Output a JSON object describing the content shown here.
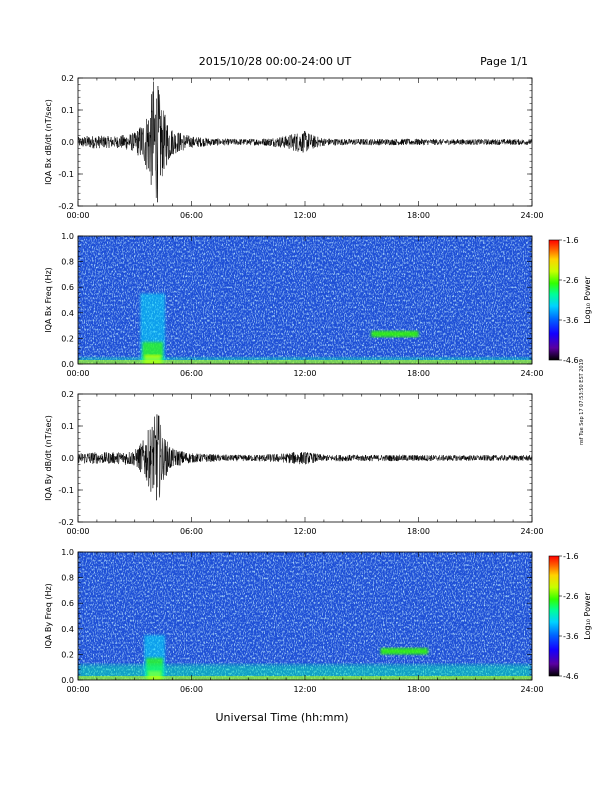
{
  "header": {
    "date_range": "2015/10/28  00:00-24:00 UT",
    "page": "Page 1/1"
  },
  "side_note": "nsf Tue Sep 17 07:53:50 EST 2019",
  "xlabel": "Universal Time (hh:mm)",
  "colors": {
    "trace": "#000000",
    "spectrogram_background": "#1e4fd6",
    "colormap": [
      "#000000",
      "#5a00a0",
      "#1400ff",
      "#0064ff",
      "#00d2ff",
      "#00ff96",
      "#32ff00",
      "#c8ff00",
      "#ffd200",
      "#ff6400",
      "#ff0000"
    ]
  },
  "chart_data": [
    {
      "type": "line",
      "ylabel": "IQA Bx dB/dt (nT/sec)",
      "xlim": [
        0,
        24
      ],
      "ylim": [
        -0.2,
        0.2
      ],
      "x_ticks": [
        "00:00",
        "06:00",
        "12:00",
        "18:00",
        "24:00"
      ],
      "y_ticks": [
        "0.2",
        "0.1",
        "0.0",
        "-0.1",
        "-0.2"
      ],
      "envelope": {
        "x_hours": [
          0,
          0.5,
          1,
          2,
          3,
          3.5,
          3.8,
          4.0,
          4.2,
          4.5,
          5,
          6,
          7,
          8,
          9,
          10,
          11,
          11.5,
          12,
          12.5,
          13,
          14,
          16,
          18,
          20,
          22,
          24
        ],
        "amplitude": [
          0.015,
          0.02,
          0.02,
          0.018,
          0.03,
          0.07,
          0.12,
          0.2,
          0.19,
          0.1,
          0.04,
          0.018,
          0.012,
          0.01,
          0.01,
          0.012,
          0.02,
          0.03,
          0.035,
          0.02,
          0.012,
          0.01,
          0.01,
          0.01,
          0.009,
          0.009,
          0.009
        ]
      }
    },
    {
      "type": "heatmap",
      "ylabel": "IQA Bx Freq (Hz)",
      "xlim": [
        0,
        24
      ],
      "ylim": [
        0.0,
        1.0
      ],
      "x_ticks": [
        "00:00",
        "06:00",
        "12:00",
        "18:00",
        "24:00"
      ],
      "y_ticks": [
        "1.0",
        "0.8",
        "0.6",
        "0.4",
        "0.2",
        "0.0"
      ],
      "colorbar": {
        "label": "Log₁₀ Power",
        "range": [
          -4.6,
          -1.6
        ],
        "ticks": [
          "-1.6",
          "-2.6",
          "-3.6",
          "-4.6"
        ]
      },
      "features": [
        {
          "name": "storm-burst",
          "x_hours": [
            3.3,
            4.6
          ],
          "freq_hz": [
            0.0,
            0.55
          ],
          "log_power": -2.4
        },
        {
          "name": "narrow-band",
          "x_hours": [
            15.5,
            18.0
          ],
          "freq_hz": [
            0.21,
            0.26
          ],
          "log_power": -2.7
        },
        {
          "name": "low-freq-band",
          "x_hours": [
            0,
            24
          ],
          "freq_hz": [
            0.0,
            0.05
          ],
          "log_power": -3.0
        }
      ]
    },
    {
      "type": "line",
      "ylabel": "IQA By dB/dt (nT/sec)",
      "xlim": [
        0,
        24
      ],
      "ylim": [
        -0.2,
        0.2
      ],
      "x_ticks": [
        "00:00",
        "06:00",
        "12:00",
        "18:00",
        "24:00"
      ],
      "y_ticks": [
        "0.2",
        "0.1",
        "0.0",
        "-0.1",
        "-0.2"
      ],
      "envelope": {
        "x_hours": [
          0,
          0.5,
          1,
          2,
          3,
          3.5,
          3.8,
          4.0,
          4.2,
          4.5,
          5,
          6,
          7,
          8,
          9,
          10,
          11,
          11.5,
          12,
          12.5,
          13,
          14,
          16,
          18,
          20,
          22,
          24
        ],
        "amplitude": [
          0.015,
          0.02,
          0.018,
          0.018,
          0.025,
          0.06,
          0.1,
          0.12,
          0.16,
          0.07,
          0.03,
          0.015,
          0.012,
          0.01,
          0.01,
          0.012,
          0.015,
          0.02,
          0.02,
          0.015,
          0.01,
          0.01,
          0.01,
          0.01,
          0.009,
          0.009,
          0.009
        ]
      }
    },
    {
      "type": "heatmap",
      "ylabel": "IQA By Freq (Hz)",
      "xlim": [
        0,
        24
      ],
      "ylim": [
        0.0,
        1.0
      ],
      "x_ticks": [
        "00:00",
        "06:00",
        "12:00",
        "18:00",
        "24:00"
      ],
      "y_ticks": [
        "1.0",
        "0.8",
        "0.6",
        "0.4",
        "0.2",
        "0.0"
      ],
      "colorbar": {
        "label": "Log₁₀ Power",
        "range": [
          -4.6,
          -1.6
        ],
        "ticks": [
          "-1.6",
          "-2.6",
          "-3.6",
          "-4.6"
        ]
      },
      "features": [
        {
          "name": "storm-burst",
          "x_hours": [
            3.5,
            4.6
          ],
          "freq_hz": [
            0.0,
            0.35
          ],
          "log_power": -2.6
        },
        {
          "name": "narrow-band",
          "x_hours": [
            16.0,
            18.5
          ],
          "freq_hz": [
            0.2,
            0.25
          ],
          "log_power": -2.7
        },
        {
          "name": "low-freq-band",
          "x_hours": [
            0,
            24
          ],
          "freq_hz": [
            0.0,
            0.12
          ],
          "log_power": -3.1
        }
      ]
    }
  ]
}
